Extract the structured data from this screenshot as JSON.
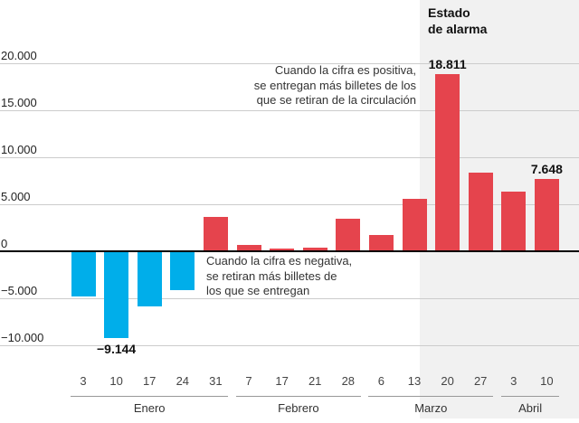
{
  "header": {
    "alarm_title_line1": "Estado",
    "alarm_title_line2": "de alarma"
  },
  "annotations": {
    "positive_lines": [
      "Cuando la cifra es positiva,",
      "se entregan más billetes de los",
      "que se retiran de la circulación"
    ],
    "negative_lines": [
      "Cuando la cifra es negativa,",
      "se retiran más billetes de",
      "los que se entregan"
    ]
  },
  "chart_data": {
    "type": "bar",
    "title": "",
    "xlabel": "",
    "ylabel": "",
    "ylim": [
      -11000,
      21000
    ],
    "grid": true,
    "y_axis": {
      "ticks": [
        20000,
        15000,
        10000,
        5000,
        0,
        -5000,
        -10000
      ],
      "tick_labels": [
        "20.000",
        "15.000",
        "10.000",
        "5.000",
        "0",
        "−5.000",
        "−10.000"
      ]
    },
    "months": [
      {
        "label": "Enero",
        "days": [
          "3",
          "10",
          "17",
          "24",
          "31"
        ]
      },
      {
        "label": "Febrero",
        "days": [
          "7",
          "17",
          "21",
          "28"
        ]
      },
      {
        "label": "Marzo",
        "days": [
          "6",
          "13",
          "20",
          "27"
        ]
      },
      {
        "label": "Abril",
        "days": [
          "3",
          "10"
        ]
      }
    ],
    "values": [
      -4800,
      -9144,
      -5800,
      -4100,
      3600,
      650,
      250,
      350,
      3450,
      1700,
      5500,
      18811,
      8300,
      6300,
      7648
    ],
    "point_labels": [
      {
        "index": 1,
        "text": "−9.144",
        "position": "below"
      },
      {
        "index": 11,
        "text": "18.811",
        "position": "above"
      },
      {
        "index": 14,
        "text": "7.648",
        "position": "above"
      }
    ],
    "colors": {
      "positive_bar": "#e5444d",
      "negative_bar": "#00aeea",
      "highlight_region": "#f1f1f1"
    },
    "highlight_region_label": "Estado de alarma"
  }
}
